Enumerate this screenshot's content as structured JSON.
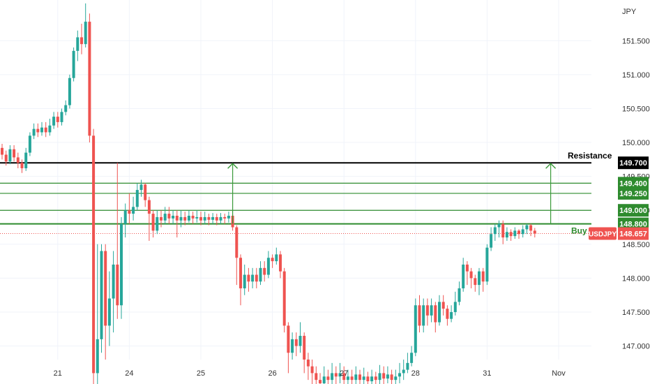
{
  "chart_data": {
    "type": "candlestick",
    "symbol": "USDJPY",
    "currency_label": "JPY",
    "last_price": "148.657",
    "colors": {
      "up": "#26a69a",
      "down": "#ef5350",
      "resistance": "#000000",
      "level": "#2e8b2e",
      "arrow": "#3a9a3a",
      "grid": "#f0f3fa",
      "price_line": "#ef5350"
    },
    "y_range": [
      146.8,
      152.1
    ],
    "y_ticks": [
      "151.500",
      "151.000",
      "150.500",
      "150.000",
      "149.500",
      "149.000",
      "148.500",
      "148.000",
      "147.500",
      "147.000"
    ],
    "x_ticks": [
      {
        "label": "21",
        "index": 14
      },
      {
        "label": "24",
        "index": 32
      },
      {
        "label": "25",
        "index": 50
      },
      {
        "label": "26",
        "index": 68
      },
      {
        "label": "27",
        "index": 86
      },
      {
        "label": "28",
        "index": 104
      },
      {
        "label": "31",
        "index": 122
      },
      {
        "label": "Nov",
        "index": 140
      }
    ],
    "levels": [
      {
        "price": 149.7,
        "label": "149.700",
        "role": "resistance"
      },
      {
        "price": 149.4,
        "label": "149.400",
        "role": "target"
      },
      {
        "price": 149.25,
        "label": "149.250",
        "role": "target"
      },
      {
        "price": 149.0,
        "label": "149.000",
        "role": "target"
      },
      {
        "price": 148.8,
        "label": "148.800",
        "role": "entry"
      }
    ],
    "annotations": [
      {
        "text": "Resistance",
        "price": 149.7
      },
      {
        "text": "Buy E",
        "price": 148.8
      }
    ],
    "arrows": [
      {
        "index": 58,
        "from": 148.8,
        "to": 149.7
      },
      {
        "index": 138,
        "from": 148.8,
        "to": 149.7
      }
    ],
    "candles": [
      [
        149.92,
        149.82,
        149.98,
        149.75
      ],
      [
        149.82,
        149.72,
        149.88,
        149.66
      ],
      [
        149.72,
        149.9,
        149.96,
        149.68
      ],
      [
        149.9,
        149.78,
        149.96,
        149.72
      ],
      [
        149.78,
        149.7,
        149.85,
        149.62
      ],
      [
        149.7,
        149.62,
        149.75,
        149.55
      ],
      [
        149.62,
        149.85,
        149.92,
        149.58
      ],
      [
        149.85,
        150.1,
        150.15,
        149.8
      ],
      [
        150.1,
        150.2,
        150.28,
        150.05
      ],
      [
        150.2,
        150.15,
        150.28,
        150.08
      ],
      [
        150.15,
        150.22,
        150.3,
        150.1
      ],
      [
        150.22,
        150.15,
        150.3,
        150.08
      ],
      [
        150.15,
        150.25,
        150.35,
        150.1
      ],
      [
        150.25,
        150.38,
        150.45,
        150.2
      ],
      [
        150.38,
        150.3,
        150.45,
        150.22
      ],
      [
        150.3,
        150.45,
        150.5,
        150.25
      ],
      [
        150.45,
        150.55,
        150.62,
        150.4
      ],
      [
        150.55,
        150.95,
        151.0,
        150.5
      ],
      [
        150.95,
        151.35,
        151.4,
        150.9
      ],
      [
        151.35,
        151.55,
        151.65,
        151.2
      ],
      [
        151.55,
        151.45,
        151.75,
        151.3
      ],
      [
        151.45,
        151.78,
        152.05,
        151.4
      ],
      [
        151.78,
        150.1,
        151.9,
        150.0
      ],
      [
        150.1,
        146.6,
        150.2,
        146.3
      ],
      [
        146.6,
        147.1,
        148.5,
        146.4
      ],
      [
        147.1,
        148.4,
        148.5,
        146.9
      ],
      [
        148.4,
        147.3,
        148.5,
        146.8
      ],
      [
        147.3,
        147.7,
        148.1,
        147.0
      ],
      [
        147.7,
        148.2,
        148.4,
        147.2
      ],
      [
        148.2,
        147.6,
        149.7,
        147.4
      ],
      [
        147.6,
        148.8,
        148.9,
        147.4
      ],
      [
        148.8,
        149.0,
        149.1,
        148.6
      ],
      [
        149.0,
        148.95,
        149.25,
        148.8
      ],
      [
        148.95,
        149.05,
        149.2,
        148.85
      ],
      [
        149.05,
        149.3,
        149.4,
        149.0
      ],
      [
        149.3,
        149.38,
        149.45,
        149.2
      ],
      [
        149.38,
        149.15,
        149.4,
        149.05
      ],
      [
        149.15,
        148.95,
        149.2,
        148.55
      ],
      [
        148.95,
        148.7,
        149.0,
        148.6
      ],
      [
        148.7,
        148.9,
        149.0,
        148.65
      ],
      [
        148.9,
        148.85,
        149.0,
        148.75
      ],
      [
        148.85,
        148.95,
        149.05,
        148.8
      ],
      [
        148.95,
        148.88,
        149.05,
        148.8
      ],
      [
        148.88,
        148.92,
        149.0,
        148.8
      ],
      [
        148.92,
        148.85,
        149.0,
        148.6
      ],
      [
        148.85,
        148.9,
        149.0,
        148.75
      ],
      [
        148.9,
        148.85,
        148.98,
        148.78
      ],
      [
        148.85,
        148.92,
        149.0,
        148.82
      ],
      [
        148.92,
        148.88,
        148.98,
        148.8
      ],
      [
        148.88,
        148.9,
        149.0,
        148.82
      ],
      [
        148.9,
        148.85,
        148.98,
        148.78
      ],
      [
        148.85,
        148.9,
        148.98,
        148.8
      ],
      [
        148.9,
        148.86,
        148.95,
        148.78
      ],
      [
        148.86,
        148.9,
        148.96,
        148.8
      ],
      [
        148.9,
        148.85,
        148.95,
        148.78
      ],
      [
        148.85,
        148.9,
        148.96,
        148.8
      ],
      [
        148.9,
        148.88,
        148.95,
        148.8
      ],
      [
        148.88,
        148.92,
        148.98,
        148.82
      ],
      [
        148.92,
        148.75,
        148.95,
        148.7
      ],
      [
        148.75,
        148.3,
        148.78,
        147.9
      ],
      [
        148.3,
        147.85,
        148.35,
        147.6
      ],
      [
        147.85,
        148.05,
        148.2,
        147.75
      ],
      [
        148.05,
        147.95,
        148.15,
        147.8
      ],
      [
        147.95,
        148.05,
        148.15,
        147.85
      ],
      [
        148.05,
        147.95,
        148.15,
        147.85
      ],
      [
        147.95,
        148.15,
        148.25,
        147.9
      ],
      [
        148.15,
        148.05,
        148.25,
        147.95
      ],
      [
        148.05,
        148.3,
        148.4,
        148.0
      ],
      [
        148.3,
        148.25,
        148.35,
        148.15
      ],
      [
        148.25,
        148.35,
        148.45,
        148.2
      ],
      [
        148.35,
        148.1,
        148.4,
        148.0
      ],
      [
        148.1,
        147.3,
        148.15,
        147.2
      ],
      [
        147.3,
        146.9,
        147.35,
        146.6
      ],
      [
        146.9,
        147.1,
        147.2,
        146.8
      ],
      [
        147.1,
        147.0,
        147.2,
        146.85
      ],
      [
        147.0,
        147.15,
        147.35,
        146.9
      ],
      [
        147.15,
        146.8,
        147.2,
        146.6
      ],
      [
        146.8,
        146.7,
        146.9,
        146.5
      ],
      [
        146.7,
        146.6,
        146.8,
        146.4
      ],
      [
        146.6,
        146.5,
        146.7,
        146.3
      ],
      [
        146.5,
        146.45,
        146.6,
        146.3
      ],
      [
        146.45,
        146.55,
        146.7,
        146.35
      ],
      [
        146.55,
        146.5,
        146.65,
        146.35
      ],
      [
        146.5,
        146.6,
        146.75,
        146.4
      ],
      [
        146.6,
        146.55,
        146.7,
        146.4
      ],
      [
        146.55,
        146.6,
        146.75,
        146.45
      ],
      [
        146.6,
        146.5,
        146.7,
        146.35
      ],
      [
        146.5,
        146.55,
        146.65,
        146.35
      ],
      [
        146.55,
        146.5,
        146.65,
        146.4
      ],
      [
        146.5,
        146.58,
        146.7,
        146.4
      ],
      [
        146.58,
        146.5,
        146.65,
        146.4
      ],
      [
        146.5,
        146.55,
        146.68,
        146.4
      ],
      [
        146.55,
        146.48,
        146.62,
        146.35
      ],
      [
        146.48,
        146.55,
        146.65,
        146.38
      ],
      [
        146.55,
        146.5,
        146.62,
        146.4
      ],
      [
        146.5,
        146.6,
        146.72,
        146.42
      ],
      [
        146.6,
        146.52,
        146.7,
        146.42
      ],
      [
        146.52,
        146.58,
        146.7,
        146.45
      ],
      [
        146.58,
        146.5,
        146.65,
        146.4
      ],
      [
        146.5,
        146.55,
        146.65,
        146.42
      ],
      [
        146.55,
        146.6,
        146.75,
        146.45
      ],
      [
        146.6,
        146.65,
        146.8,
        146.5
      ],
      [
        146.65,
        146.75,
        146.9,
        146.6
      ],
      [
        146.75,
        146.9,
        147.0,
        146.7
      ],
      [
        146.9,
        147.6,
        147.7,
        146.85
      ],
      [
        147.6,
        147.3,
        147.75,
        147.2
      ],
      [
        147.3,
        147.6,
        147.7,
        147.2
      ],
      [
        147.6,
        147.45,
        147.7,
        147.3
      ],
      [
        147.45,
        147.6,
        147.7,
        147.35
      ],
      [
        147.6,
        147.35,
        147.65,
        147.2
      ],
      [
        147.35,
        147.65,
        147.75,
        147.3
      ],
      [
        147.65,
        147.55,
        147.75,
        147.45
      ],
      [
        147.55,
        147.4,
        147.6,
        147.3
      ],
      [
        147.4,
        147.5,
        147.6,
        147.35
      ],
      [
        147.5,
        147.65,
        147.8,
        147.45
      ],
      [
        147.65,
        147.85,
        147.95,
        147.6
      ],
      [
        147.85,
        148.2,
        148.3,
        147.8
      ],
      [
        148.2,
        148.1,
        148.25,
        147.9
      ],
      [
        148.1,
        148.0,
        148.15,
        147.85
      ],
      [
        148.0,
        147.9,
        148.05,
        147.8
      ],
      [
        147.9,
        148.1,
        148.15,
        147.75
      ],
      [
        148.1,
        147.95,
        148.15,
        147.8
      ],
      [
        147.95,
        148.45,
        148.5,
        147.9
      ],
      [
        148.45,
        148.65,
        148.75,
        148.4
      ],
      [
        148.65,
        148.75,
        148.8,
        148.55
      ],
      [
        148.75,
        148.8,
        148.85,
        148.6
      ],
      [
        148.8,
        148.6,
        148.85,
        148.5
      ],
      [
        148.6,
        148.68,
        148.75,
        148.55
      ],
      [
        148.68,
        148.62,
        148.72,
        148.55
      ],
      [
        148.62,
        148.7,
        148.75,
        148.58
      ],
      [
        148.7,
        148.65,
        148.72,
        148.58
      ],
      [
        148.65,
        148.72,
        148.78,
        148.6
      ],
      [
        148.72,
        148.78,
        148.8,
        148.65
      ],
      [
        148.78,
        148.7,
        148.8,
        148.62
      ],
      [
        148.7,
        148.66,
        148.74,
        148.6
      ]
    ]
  },
  "axis": {
    "x_labels": [
      "21",
      "24",
      "25",
      "26",
      "27",
      "28",
      "31",
      "Nov"
    ]
  }
}
